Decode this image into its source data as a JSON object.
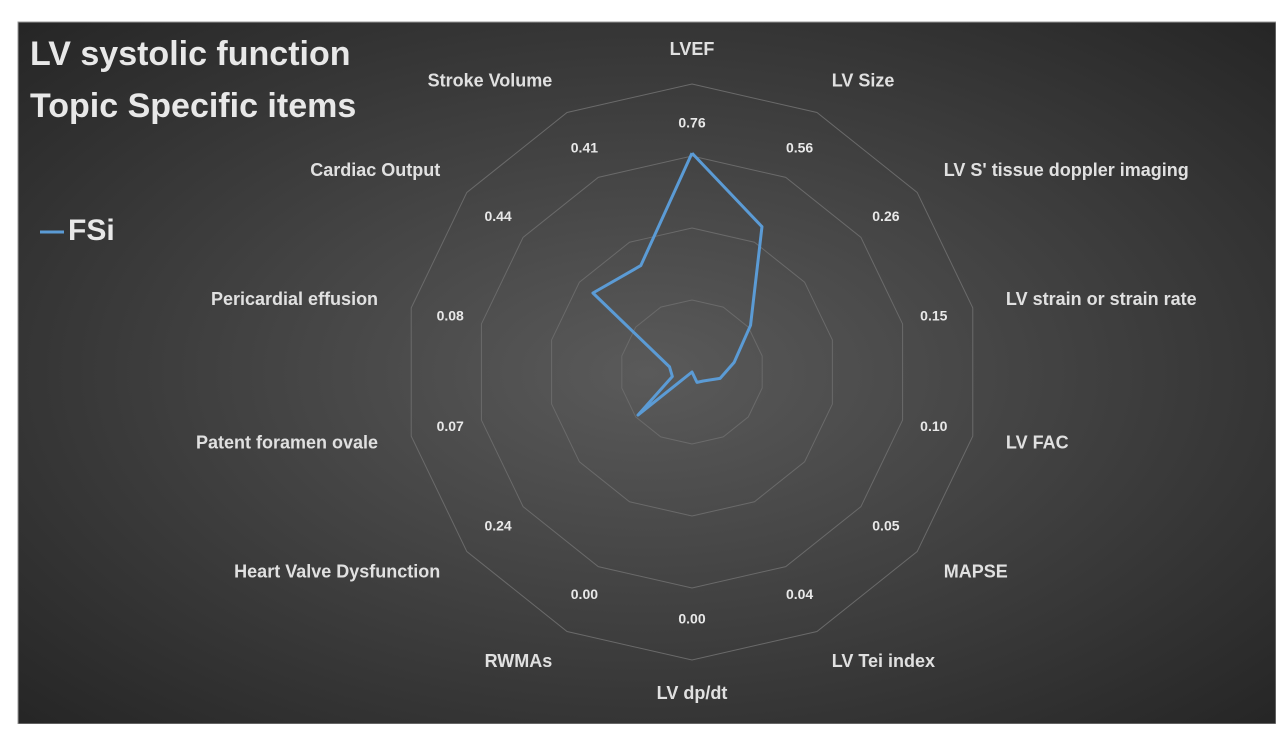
{
  "chart_data": {
    "type": "radar",
    "title": "LV systolic function",
    "subtitle": "Topic Specific items",
    "categories": [
      "LVEF",
      "LV Size",
      "LV S' tissue doppler imaging",
      "LV strain or strain rate",
      "LV FAC",
      "MAPSE",
      "LV Tei index",
      "LV dp/dt",
      "RWMAs",
      "Heart Valve Dysfunction",
      "Patent foramen ovale",
      "Pericardial effusion",
      "Cardiac Output",
      "Stroke Volume"
    ],
    "series": [
      {
        "name": "FSi",
        "color": "#5b9bd5",
        "values": [
          0.76,
          0.56,
          0.26,
          0.15,
          0.1,
          0.05,
          0.04,
          0,
          0,
          0.24,
          0.07,
          0.08,
          0.44,
          0.41
        ],
        "value_labels": [
          "0.76",
          "0.56",
          "0.26",
          "0.15",
          "0.10",
          "0.05",
          "0.04",
          "0.00",
          "0.00",
          "0.24",
          "0.07",
          "0.08",
          "0.44",
          "0.41"
        ]
      }
    ],
    "rlim": [
      0,
      1
    ],
    "rticks": [
      0.25,
      0.5,
      0.75,
      1
    ],
    "legend": "left"
  }
}
